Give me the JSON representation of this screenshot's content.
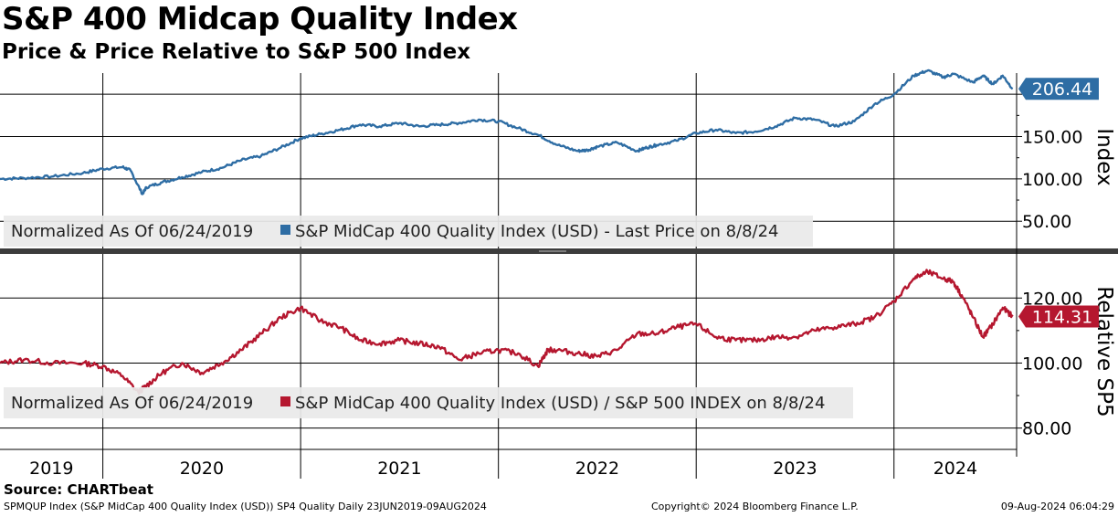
{
  "title": "S&P 400 Midcap Quality Index",
  "subtitle": "Price & Price Relative to S&P 500 Index",
  "source": "Source: CHARTbeat",
  "footer": {
    "left": "SPMQUP Index (S&P MidCap 400 Quality Index (USD)) SP4 Quality  Daily 23JUN2019-09AUG2024",
    "center": "Copyright© 2024 Bloomberg Finance L.P.",
    "right": "09-Aug-2024 06:04:29"
  },
  "colors": {
    "index_line": "#2e6da4",
    "relative_line": "#b5172f",
    "label_blue": "#2e6da4",
    "label_red": "#b5172f"
  },
  "chart_data": [
    {
      "type": "line",
      "panel": "top",
      "ylabel": "Index",
      "ylim": [
        20,
        225
      ],
      "yticks": [
        50,
        100,
        150,
        200
      ],
      "ytick_labels": [
        "50.00",
        "100.00",
        "150.00",
        ""
      ],
      "grid": true,
      "legend": "Normalized As Of 06/24/2019  ■ S&P MidCap 400 Quality Index (USD) - Last Price on 8/8/24",
      "legend_prefix": "Normalized As Of 06/24/2019",
      "legend_series": "S&P MidCap 400 Quality Index (USD) - Last Price on 8/8/24",
      "last_value": 206.44,
      "last_value_label": "206.44",
      "series": [
        {
          "x": [
            2019.48,
            2019.6,
            2019.75,
            2019.9,
            2020.0,
            2020.1,
            2020.14,
            2020.2,
            2020.22,
            2020.3,
            2020.4,
            2020.5,
            2020.6,
            2020.7,
            2020.8,
            2020.9,
            2021.0,
            2021.1,
            2021.2,
            2021.3,
            2021.4,
            2021.5,
            2021.6,
            2021.7,
            2021.8,
            2021.9,
            2022.0,
            2022.1,
            2022.2,
            2022.3,
            2022.4,
            2022.45,
            2022.5,
            2022.6,
            2022.7,
            2022.75,
            2022.8,
            2022.9,
            2023.0,
            2023.1,
            2023.2,
            2023.3,
            2023.4,
            2023.5,
            2023.6,
            2023.7,
            2023.8,
            2023.9,
            2024.0,
            2024.1,
            2024.17,
            2024.25,
            2024.3,
            2024.4,
            2024.45,
            2024.5,
            2024.55,
            2024.6
          ],
          "values": [
            100,
            101,
            103,
            107,
            112,
            114,
            110,
            82,
            90,
            96,
            102,
            108,
            113,
            122,
            127,
            137,
            148,
            153,
            158,
            164,
            162,
            166,
            162,
            164,
            166,
            170,
            168,
            160,
            152,
            140,
            133,
            134,
            138,
            143,
            133,
            137,
            140,
            145,
            154,
            158,
            154,
            156,
            162,
            172,
            170,
            162,
            168,
            188,
            200,
            222,
            228,
            220,
            224,
            214,
            222,
            212,
            222,
            206.44
          ]
        }
      ]
    },
    {
      "type": "line",
      "panel": "bottom",
      "ylabel": "Relative SP5",
      "ylim": [
        74,
        133
      ],
      "yticks": [
        80,
        100,
        120
      ],
      "ytick_labels": [
        "80.00",
        "100.00",
        "120.00"
      ],
      "grid": true,
      "legend": "Normalized As Of 06/24/2019  ■ S&P MidCap 400 Quality Index (USD) / S&P 500 INDEX on 8/8/24",
      "legend_prefix": "Normalized As Of 06/24/2019",
      "legend_series": "S&P MidCap 400 Quality Index (USD) / S&P 500 INDEX on 8/8/24",
      "last_value": 114.31,
      "last_value_label": "114.31",
      "series": [
        {
          "x": [
            2019.48,
            2019.6,
            2019.75,
            2019.9,
            2020.0,
            2020.1,
            2020.18,
            2020.22,
            2020.3,
            2020.4,
            2020.5,
            2020.6,
            2020.7,
            2020.8,
            2020.9,
            2021.0,
            2021.1,
            2021.2,
            2021.3,
            2021.4,
            2021.5,
            2021.6,
            2021.7,
            2021.8,
            2021.9,
            2022.0,
            2022.1,
            2022.2,
            2022.25,
            2022.3,
            2022.4,
            2022.5,
            2022.6,
            2022.7,
            2022.8,
            2022.9,
            2023.0,
            2023.1,
            2023.2,
            2023.3,
            2023.4,
            2023.5,
            2023.6,
            2023.7,
            2023.8,
            2023.9,
            2024.0,
            2024.1,
            2024.17,
            2024.25,
            2024.3,
            2024.35,
            2024.4,
            2024.45,
            2024.5,
            2024.55,
            2024.6
          ],
          "values": [
            100,
            101,
            100,
            100,
            99,
            96,
            91,
            93,
            97,
            100,
            97,
            100,
            104,
            109,
            114,
            117,
            113,
            111,
            107,
            106,
            107,
            106,
            105,
            101,
            103,
            104,
            103,
            99,
            104,
            104,
            103,
            102,
            104,
            109,
            109,
            111,
            112,
            108,
            107,
            107,
            108,
            108,
            110,
            111,
            112,
            114,
            119,
            126,
            128,
            126,
            125,
            120,
            114,
            108,
            112,
            117,
            114.31
          ]
        }
      ]
    }
  ],
  "x_axis": {
    "year_labels": [
      "2019",
      "2020",
      "2021",
      "2022",
      "2023",
      "2024"
    ],
    "boundaries": [
      2020,
      2021,
      2022,
      2023,
      2024
    ],
    "range": [
      2019.48,
      2024.62
    ]
  }
}
